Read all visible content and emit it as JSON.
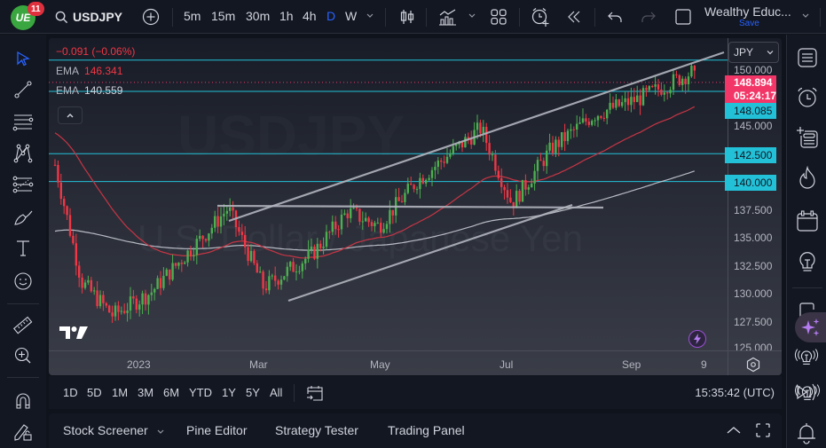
{
  "topbar": {
    "logo_text": "UE",
    "notification_count": "11",
    "symbol": "USDJPY",
    "intervals": [
      {
        "label": "5m",
        "active": false
      },
      {
        "label": "15m",
        "active": false
      },
      {
        "label": "30m",
        "active": false
      },
      {
        "label": "1h",
        "active": false
      },
      {
        "label": "4h",
        "active": false
      },
      {
        "label": "D",
        "active": true
      },
      {
        "label": "W",
        "active": false
      }
    ],
    "layout_name": "Wealthy Educ...",
    "layout_save": "Save",
    "icons": [
      "add-symbol-icon",
      "chevron-down-icon",
      "candles-icon",
      "indicators-icon",
      "chevron-down-icon",
      "templates-icon",
      "alert-icon",
      "replay-icon",
      "undo-icon",
      "redo-icon",
      "fullscreen-icon",
      "chevron-down-icon"
    ]
  },
  "left_toolbar": {
    "tools": [
      "cursor-icon",
      "trendline-icon",
      "horizontal-lines-icon",
      "pattern-icon",
      "fib-icon",
      "brush-icon",
      "text-icon",
      "emoji-icon",
      "ruler-icon",
      "zoom-in-icon",
      "magnet-icon",
      "lock-drawing-icon"
    ]
  },
  "legend": {
    "change": "−0.091 (−0.06%)",
    "ema1_label": "EMA",
    "ema1_value": "146.341",
    "ema2_label": "EMA",
    "ema2_value": "140.559"
  },
  "price_axis": {
    "currency": "JPY",
    "ticks": [
      "150.000",
      "145.000",
      "137.500",
      "135.000",
      "132.500",
      "130.000",
      "127.500",
      "125.000"
    ],
    "current_price": "148.894",
    "countdown": "05:24:17",
    "levels": [
      "148.085",
      "142.500",
      "140.000"
    ]
  },
  "time_axis": {
    "ticks": [
      {
        "label": "2023",
        "x": 88
      },
      {
        "label": "Mar",
        "x": 226
      },
      {
        "label": "May",
        "x": 362
      },
      {
        "label": "Jul",
        "x": 508
      },
      {
        "label": "Sep",
        "x": 646
      },
      {
        "label": "9",
        "x": 735
      }
    ]
  },
  "watermark": {
    "symbol": "USDJPY",
    "description": "U.S. Dollar / Japanese Yen"
  },
  "range_bar": {
    "ranges": [
      "1D",
      "5D",
      "1M",
      "3M",
      "6M",
      "YTD",
      "1Y",
      "5Y",
      "All"
    ],
    "clock": "15:35:42 (UTC)"
  },
  "panel_bar": {
    "tabs": [
      "Stock Screener",
      "Pine Editor",
      "Strategy Tester",
      "Trading Panel"
    ]
  },
  "right_toolbar": {
    "tools": [
      "watchlist-icon",
      "alarm-icon",
      "add-list-icon",
      "hotlist-icon",
      "calendar-icon",
      "ideas-icon",
      "chat-icon",
      "ai-sparkle-icon",
      "streams-icon",
      "playback-icon",
      "notifications-icon"
    ]
  },
  "colors": {
    "up": "#4caf50",
    "down": "#f23645",
    "accent": "#2962ff",
    "level_line": "#22c1d8",
    "ema_fast": "#c73545",
    "ema_slow": "#d1d4dc",
    "current_price_bg": "#f23667"
  },
  "chart_data": {
    "type": "candlestick",
    "title": "USDJPY · D",
    "symbol": "USDJPY",
    "interval": "D",
    "ylim": [
      125.0,
      152.0
    ],
    "y_ticks": [
      125.0,
      127.5,
      130.0,
      132.5,
      135.0,
      137.5,
      140.0,
      142.5,
      145.0,
      147.5,
      150.0
    ],
    "x_ticks": [
      "2023",
      "Mar",
      "May",
      "Jul",
      "Sep",
      "9"
    ],
    "last_price": 148.894,
    "change": -0.091,
    "change_pct": -0.06,
    "horizontal_levels": [
      150.9,
      148.085,
      142.5,
      140.0
    ],
    "support_line": 137.8,
    "ema_fast_last": 146.341,
    "ema_slow_last": 140.559,
    "approx_close_path": [
      {
        "date": "2022-12-20",
        "close": 141.5
      },
      {
        "date": "2023-01-01",
        "close": 131.0
      },
      {
        "date": "2023-01-15",
        "close": 128.0
      },
      {
        "date": "2023-02-01",
        "close": 130.0
      },
      {
        "date": "2023-03-01",
        "close": 136.0
      },
      {
        "date": "2023-03-08",
        "close": 137.6
      },
      {
        "date": "2023-03-24",
        "close": 130.5
      },
      {
        "date": "2023-04-15",
        "close": 133.5
      },
      {
        "date": "2023-05-01",
        "close": 137.3
      },
      {
        "date": "2023-05-15",
        "close": 136.0
      },
      {
        "date": "2023-06-01",
        "close": 140.0
      },
      {
        "date": "2023-06-30",
        "close": 144.8
      },
      {
        "date": "2023-07-14",
        "close": 138.0
      },
      {
        "date": "2023-08-01",
        "close": 143.0
      },
      {
        "date": "2023-08-20",
        "close": 146.0
      },
      {
        "date": "2023-09-10",
        "close": 147.5
      },
      {
        "date": "2023-10-03",
        "close": 149.8
      },
      {
        "date": "2023-10-05",
        "close": 148.894
      }
    ]
  }
}
